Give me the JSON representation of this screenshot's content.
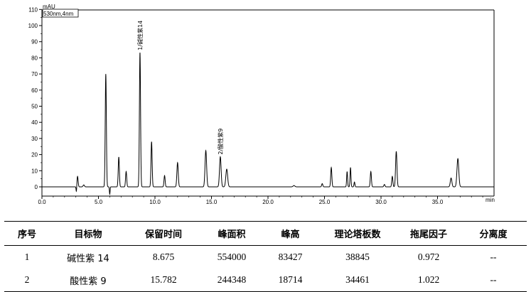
{
  "chart_data": {
    "type": "line",
    "title": "",
    "ylabel": "mAU",
    "xlabel": "min",
    "detector_label": "530nm,4nm",
    "xlim": [
      0,
      40
    ],
    "ylim": [
      -5,
      110
    ],
    "xticks": [
      0.0,
      5.0,
      10.0,
      15.0,
      20.0,
      25.0,
      30.0,
      35.0
    ],
    "xtick_labels": [
      "0.0",
      "5.0",
      "10.0",
      "15.0",
      "20.0",
      "25.0",
      "30.0",
      "35.0"
    ],
    "yticks": [
      0,
      10,
      20,
      30,
      40,
      50,
      60,
      70,
      80,
      90,
      100,
      110
    ],
    "ytick_labels": [
      "0",
      "10",
      "20",
      "30",
      "40",
      "50",
      "60",
      "70",
      "80",
      "90",
      "100",
      "110"
    ],
    "grid": false,
    "baseline": 0,
    "peaks": [
      {
        "t": 3.15,
        "h": 6.5,
        "w": 0.05
      },
      {
        "t": 3.7,
        "h": 1.2,
        "w": 0.06
      },
      {
        "t": 5.65,
        "h": 70,
        "w": 0.05
      },
      {
        "t": 6.8,
        "h": 18.5,
        "w": 0.05
      },
      {
        "t": 7.45,
        "h": 9.5,
        "w": 0.05
      },
      {
        "t": 8.675,
        "h": 83.4,
        "w": 0.05
      },
      {
        "t": 9.7,
        "h": 28,
        "w": 0.05
      },
      {
        "t": 10.85,
        "h": 7,
        "w": 0.05
      },
      {
        "t": 12.0,
        "h": 15,
        "w": 0.06
      },
      {
        "t": 14.5,
        "h": 22.5,
        "w": 0.07
      },
      {
        "t": 15.782,
        "h": 18.7,
        "w": 0.07
      },
      {
        "t": 16.35,
        "h": 11,
        "w": 0.08
      },
      {
        "t": 22.3,
        "h": 0.8,
        "w": 0.08
      },
      {
        "t": 24.8,
        "h": 2,
        "w": 0.05
      },
      {
        "t": 25.6,
        "h": 12,
        "w": 0.05
      },
      {
        "t": 27.0,
        "h": 9.5,
        "w": 0.04
      },
      {
        "t": 27.3,
        "h": 12,
        "w": 0.04
      },
      {
        "t": 27.65,
        "h": 3,
        "w": 0.04
      },
      {
        "t": 29.1,
        "h": 9.5,
        "w": 0.05
      },
      {
        "t": 30.3,
        "h": 1.5,
        "w": 0.05
      },
      {
        "t": 31.0,
        "h": 6.5,
        "w": 0.05
      },
      {
        "t": 31.35,
        "h": 22,
        "w": 0.06
      },
      {
        "t": 36.2,
        "h": 5.5,
        "w": 0.07
      },
      {
        "t": 36.8,
        "h": 17.5,
        "w": 0.08
      }
    ],
    "dips": [
      {
        "t": 3.05,
        "d": -3.5,
        "w": 0.03
      },
      {
        "t": 6.0,
        "d": -4.5,
        "w": 0.03
      }
    ],
    "annotations": [
      {
        "text": "1/碱性紫14",
        "t": 8.675,
        "h": 83.4
      },
      {
        "text": "2/酸性紫9",
        "t": 15.782,
        "h": 18.7
      }
    ]
  },
  "table": {
    "headers": [
      "序号",
      "目标物",
      "保留时间",
      "峰面积",
      "峰高",
      "理论塔板数",
      "拖尾因子",
      "分离度"
    ],
    "rows": [
      [
        "1",
        "碱性紫 14",
        "8.675",
        "554000",
        "83427",
        "38845",
        "0.972",
        "--"
      ],
      [
        "2",
        "酸性紫 9",
        "15.782",
        "244348",
        "18714",
        "34461",
        "1.022",
        "--"
      ]
    ]
  }
}
